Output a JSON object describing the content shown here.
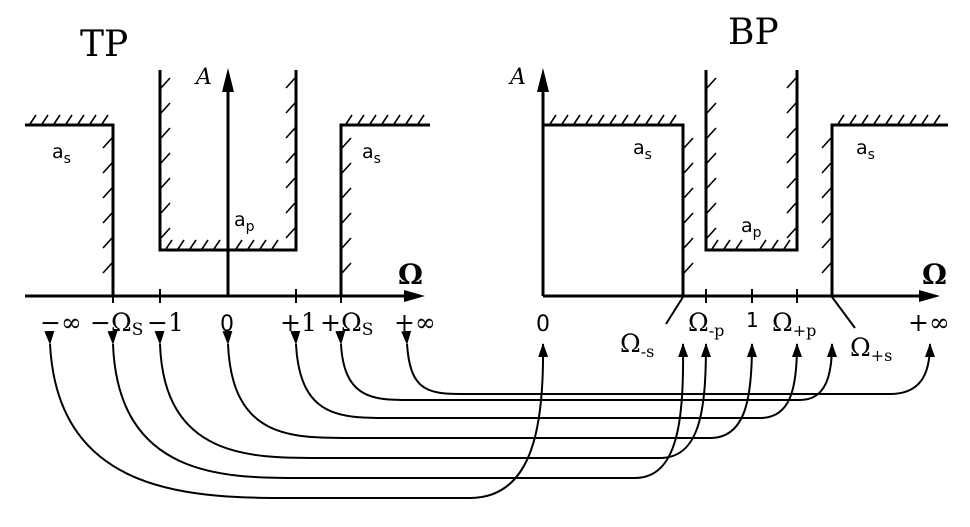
{
  "lowpass": {
    "title": "TP",
    "axis_y": "A",
    "axis_x": "Ω",
    "stopband_label_left": "a",
    "stopband_label_left_sub": "s",
    "stopband_label_right": "a",
    "stopband_label_right_sub": "s",
    "passband_label": "a",
    "passband_label_sub": "p",
    "ticks": [
      {
        "main": "−∞",
        "sub": ""
      },
      {
        "main": "−Ω",
        "sub": "S"
      },
      {
        "main": "−1",
        "sub": ""
      },
      {
        "main": "0",
        "sub": ""
      },
      {
        "main": "+1",
        "sub": ""
      },
      {
        "main": "+Ω",
        "sub": "S"
      },
      {
        "main": "+∞",
        "sub": ""
      }
    ]
  },
  "bandpass": {
    "title": "BP",
    "axis_y": "A",
    "axis_x": "Ω",
    "stopband_label_left": "a",
    "stopband_label_left_sub": "s",
    "stopband_label_right": "a",
    "stopband_label_right_sub": "s",
    "passband_label": "a",
    "passband_label_sub": "p",
    "ticks": [
      {
        "main": "0",
        "sub": ""
      },
      {
        "main": "Ω",
        "sub": "-s"
      },
      {
        "main": "Ω",
        "sub": "-p"
      },
      {
        "main": "1",
        "sub": ""
      },
      {
        "main": "Ω",
        "sub": "+p"
      },
      {
        "main": "Ω",
        "sub": "+s"
      },
      {
        "main": "+∞",
        "sub": ""
      }
    ]
  },
  "mapping": [
    {
      "from": "−∞",
      "to": "0"
    },
    {
      "from": "−Ω_S",
      "to": "Ω_-s"
    },
    {
      "from": "−1",
      "to": "Ω_-p"
    },
    {
      "from": "0",
      "to": "1"
    },
    {
      "from": "+1",
      "to": "Ω_+p"
    },
    {
      "from": "+Ω_S",
      "to": "Ω_+s"
    },
    {
      "from": "+∞",
      "to": "+∞"
    }
  ]
}
